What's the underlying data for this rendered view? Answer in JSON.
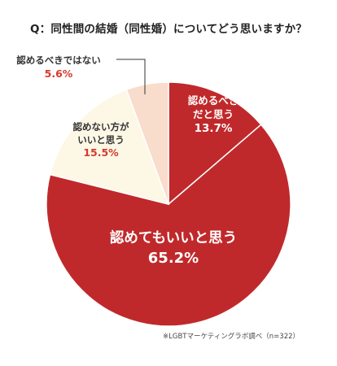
{
  "chart_data": {
    "type": "pie",
    "title": "Q：同性間の結婚（同性婚）についてどう思いますか？",
    "slices": [
      {
        "label_lines": [
          "認めるべき",
          "だと思う"
        ],
        "value": 13.7,
        "value_text": "13.7%",
        "color": "#c0292b",
        "text_color": "#ffffff"
      },
      {
        "label_lines": [
          "認めてもいいと思う"
        ],
        "value": 65.2,
        "value_text": "65.2%",
        "color": "#c0292b",
        "text_color": "#ffffff"
      },
      {
        "label_lines": [
          "認めない方が",
          "いいと思う"
        ],
        "value": 15.5,
        "value_text": "15.5%",
        "color": "#fdf7e6",
        "text_color": "#333333",
        "value_color": "#d53a2c"
      },
      {
        "label_lines": [
          "認めるべきではない"
        ],
        "value": 5.6,
        "value_text": "5.6%",
        "color": "#f8dccc",
        "text_color": "#333333",
        "value_color": "#d53a2c"
      }
    ],
    "footnote": "※LGBTマーケティングラボ調べ（n=322）"
  }
}
